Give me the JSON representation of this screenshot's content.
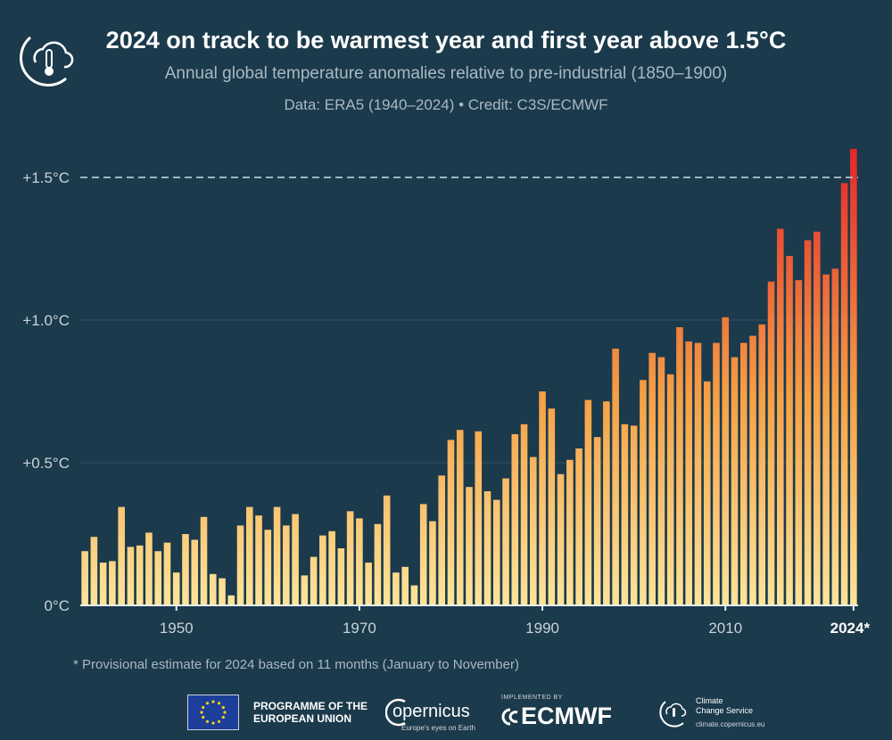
{
  "header": {
    "title": "2024 on track to be warmest year and first year above 1.5°C",
    "subtitle": "Annual global temperature anomalies relative to pre-industrial (1850–1900)",
    "credit": "Data: ERA5 (1940–2024) • Credit: C3S/ECMWF"
  },
  "footnote": "* Provisional estimate for 2024 based on 11 months (January to November)",
  "footer": {
    "eu_line1": "PROGRAMME OF THE",
    "eu_line2": "EUROPEAN UNION",
    "copernicus_name": "opernicus",
    "copernicus_tagline": "Europe's eyes on Earth",
    "ecmwf_implemented": "IMPLEMENTED BY",
    "ecmwf_name": "ECMWF",
    "c3s_line1": "Climate",
    "c3s_line2": "Change Service",
    "c3s_url": "climate.copernicus.eu"
  },
  "colors": {
    "background": "#1b3a4b",
    "bar_low": "#fde49a",
    "bar_mid": "#f5a146",
    "bar_high": "#e4262a",
    "threshold_line": "#9fb4c2"
  },
  "chart_data": {
    "type": "bar",
    "title": "2024 on track to be warmest year and first year above 1.5°C",
    "ylim": [
      0,
      1.6
    ],
    "yticks": [
      0,
      0.5,
      1.0,
      1.5
    ],
    "ytick_labels": [
      "0°C",
      "+0.5°C",
      "+1.0°C",
      "+1.5°C"
    ],
    "xtick_years": [
      1950,
      1970,
      1990,
      2010,
      2024
    ],
    "xtick_labels": [
      "1950",
      "1970",
      "1990",
      "2010",
      "2024*"
    ],
    "threshold": 1.5,
    "grid": true,
    "x": [
      1940,
      1941,
      1942,
      1943,
      1944,
      1945,
      1946,
      1947,
      1948,
      1949,
      1950,
      1951,
      1952,
      1953,
      1954,
      1955,
      1956,
      1957,
      1958,
      1959,
      1960,
      1961,
      1962,
      1963,
      1964,
      1965,
      1966,
      1967,
      1968,
      1969,
      1970,
      1971,
      1972,
      1973,
      1974,
      1975,
      1976,
      1977,
      1978,
      1979,
      1980,
      1981,
      1982,
      1983,
      1984,
      1985,
      1986,
      1987,
      1988,
      1989,
      1990,
      1991,
      1992,
      1993,
      1994,
      1995,
      1996,
      1997,
      1998,
      1999,
      2000,
      2001,
      2002,
      2003,
      2004,
      2005,
      2006,
      2007,
      2008,
      2009,
      2010,
      2011,
      2012,
      2013,
      2014,
      2015,
      2016,
      2017,
      2018,
      2019,
      2020,
      2021,
      2022,
      2023,
      2024
    ],
    "values": [
      0.19,
      0.24,
      0.15,
      0.155,
      0.345,
      0.205,
      0.21,
      0.255,
      0.19,
      0.22,
      0.115,
      0.25,
      0.23,
      0.31,
      0.11,
      0.095,
      0.035,
      0.28,
      0.345,
      0.315,
      0.265,
      0.345,
      0.28,
      0.32,
      0.105,
      0.17,
      0.245,
      0.26,
      0.2,
      0.33,
      0.305,
      0.15,
      0.285,
      0.385,
      0.115,
      0.135,
      0.07,
      0.355,
      0.295,
      0.455,
      0.58,
      0.615,
      0.415,
      0.61,
      0.4,
      0.37,
      0.445,
      0.6,
      0.635,
      0.52,
      0.75,
      0.69,
      0.46,
      0.51,
      0.55,
      0.72,
      0.59,
      0.715,
      0.9,
      0.635,
      0.63,
      0.79,
      0.885,
      0.87,
      0.81,
      0.975,
      0.925,
      0.92,
      0.785,
      0.92,
      1.01,
      0.87,
      0.92,
      0.945,
      0.985,
      1.135,
      1.32,
      1.225,
      1.14,
      1.28,
      1.31,
      1.16,
      1.18,
      1.48,
      1.6
    ]
  }
}
